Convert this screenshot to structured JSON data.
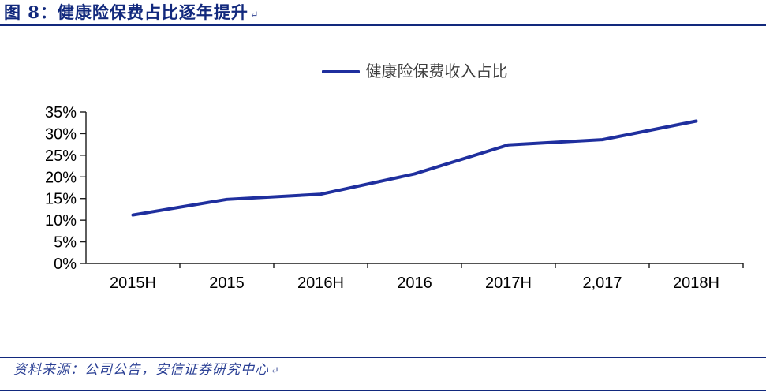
{
  "figure": {
    "title": "图 8：健康险保费占比逐年提升",
    "return_mark": "↵",
    "source": "资料来源：公司公告，安信证券研究中心"
  },
  "legend": {
    "label": "健康险保费收入占比"
  },
  "colors": {
    "navy_rule": "#12297d",
    "title_text": "#12297d",
    "series_line": "#1f2f9e",
    "source_text": "#2b4095",
    "axis": "#1a1a1a",
    "tick_label": "#000000",
    "legend_text": "#3d3d3d"
  },
  "chart_data": {
    "type": "line",
    "title": "图 8：健康险保费占比逐年提升",
    "categories": [
      "2015H",
      "2015",
      "2016H",
      "2016",
      "2017H",
      "2,017",
      "2018H"
    ],
    "series": [
      {
        "name": "健康险保费收入占比",
        "values": [
          11.2,
          14.8,
          16.0,
          20.7,
          27.4,
          28.6,
          32.9
        ]
      }
    ],
    "xlabel": "",
    "ylabel": "",
    "ylim": [
      0,
      35
    ],
    "ytick_step": 5,
    "ytick_labels": [
      "0%",
      "5%",
      "10%",
      "15%",
      "20%",
      "25%",
      "30%",
      "35%"
    ],
    "grid": false,
    "legend_position": "top-center",
    "line_width": 4,
    "markers": false
  }
}
